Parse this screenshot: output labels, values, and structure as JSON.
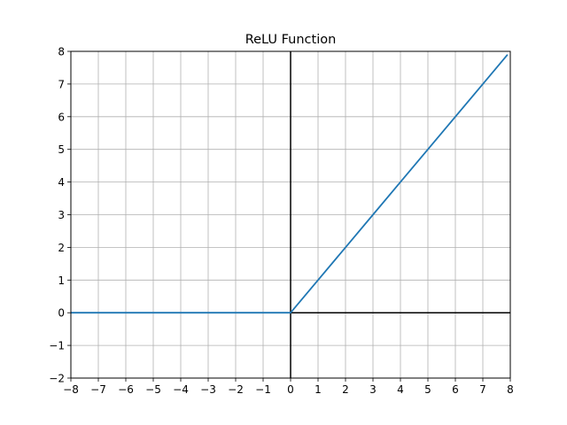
{
  "chart_data": {
    "type": "line",
    "title": "ReLU Function",
    "xlabel": "",
    "ylabel": "",
    "xlim": [
      -8,
      8
    ],
    "ylim": [
      -2,
      8
    ],
    "x_ticks": [
      -8,
      -7,
      -6,
      -5,
      -4,
      -3,
      -2,
      -1,
      0,
      1,
      2,
      3,
      4,
      5,
      6,
      7,
      8
    ],
    "y_ticks": [
      -2,
      -1,
      0,
      1,
      2,
      3,
      4,
      5,
      6,
      7,
      8
    ],
    "x_tick_labels": [
      "−8",
      "−7",
      "−6",
      "−5",
      "−4",
      "−3",
      "−2",
      "−1",
      "0",
      "1",
      "2",
      "3",
      "4",
      "5",
      "6",
      "7",
      "8"
    ],
    "y_tick_labels": [
      "−2",
      "−1",
      "0",
      "1",
      "2",
      "3",
      "4",
      "5",
      "6",
      "7",
      "8"
    ],
    "grid": true,
    "axis_lines_at_zero": true,
    "series": [
      {
        "x": [
          -8,
          -7,
          -6,
          -5,
          -4,
          -3,
          -2,
          -1,
          0,
          1,
          2,
          3,
          4,
          5,
          6,
          7,
          7.9
        ],
        "y": [
          0,
          0,
          0,
          0,
          0,
          0,
          0,
          0,
          0,
          1,
          2,
          3,
          4,
          5,
          6,
          7,
          7.9
        ],
        "color": "#1f77b4"
      }
    ],
    "colors": {
      "grid": "#b0b0b0",
      "axes": "#000000",
      "background": "#ffffff"
    }
  }
}
